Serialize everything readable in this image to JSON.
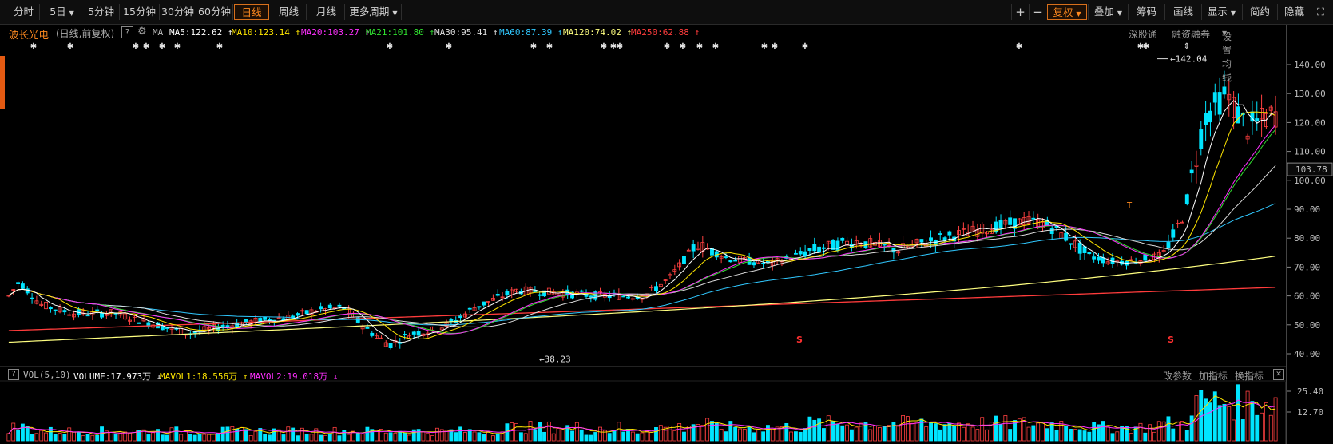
{
  "toolbar": {
    "tabs": [
      "分时",
      "5日",
      "5分钟",
      "15分钟",
      "30分钟",
      "60分钟",
      "日线",
      "周线",
      "月线",
      "更多周期"
    ],
    "active_tab": "日线",
    "right_buttons": [
      "+",
      "−",
      "复权",
      "叠加",
      "筹码",
      "画线",
      "显示",
      "简约",
      "隐藏"
    ],
    "active_right": "复权"
  },
  "stock": {
    "name": "波长光电",
    "mode": "(日线,前复权)",
    "help_mark": "?",
    "ma_label": "MA",
    "ma": [
      {
        "text": "MA5:122.62",
        "arrow": "↑",
        "color": "#ffffff"
      },
      {
        "text": "MA10:123.14",
        "arrow": "↑",
        "color": "#ffe600"
      },
      {
        "text": "MA20:103.27",
        "arrow": "↑",
        "color": "#ff30ff"
      },
      {
        "text": "MA21:101.80",
        "arrow": "↑",
        "color": "#30e030"
      },
      {
        "text": "MA30:95.41",
        "arrow": "↑",
        "color": "#dddddd"
      },
      {
        "text": "MA60:87.39",
        "arrow": "↑",
        "color": "#30c8ff"
      },
      {
        "text": "MA120:74.02",
        "arrow": "↑",
        "color": "#ffff80"
      },
      {
        "text": "MA250:62.88",
        "arrow": "↑",
        "color": "#ff3c3c"
      }
    ],
    "right_links": [
      "深股通",
      "融资融券",
      "设置均线"
    ]
  },
  "price_axis": {
    "ticks": [
      "140.00",
      "130.00",
      "120.00",
      "110.00",
      "100.00",
      "90.00",
      "80.00",
      "70.00",
      "60.00",
      "50.00",
      "40.00"
    ],
    "current": "103.78",
    "high_label": "142.04",
    "low_label": "38.23"
  },
  "volume": {
    "label": "VOL(5,10)",
    "volume": "VOLUME:17.973万",
    "volume_arrow": "↓",
    "mavol1": "MAVOL1:18.556万",
    "mavol1_arrow": "↑",
    "mavol2": "MAVOL2:19.018万",
    "mavol2_arrow": "↓",
    "right_links": [
      "改参数",
      "加指标",
      "换指标"
    ],
    "close_mark": "✕",
    "ticks": [
      "25.40",
      "12.70"
    ]
  },
  "markers": {
    "star_mark": "✱",
    "t_mark": "T",
    "s_mark": "S"
  },
  "colors": {
    "up": "#ff4040",
    "down": "#00e5ff",
    "active": "#ff8a1f",
    "ma250": "#ff3c3c",
    "ma120": "#ffff80",
    "ma60": "#30c8ff",
    "ma30": "#dddddd",
    "ma20": "#ff30ff",
    "ma10": "#ffe600",
    "ma5": "#ffffff",
    "mavol1": "#ffe600",
    "mavol2": "#ff30ff"
  }
}
